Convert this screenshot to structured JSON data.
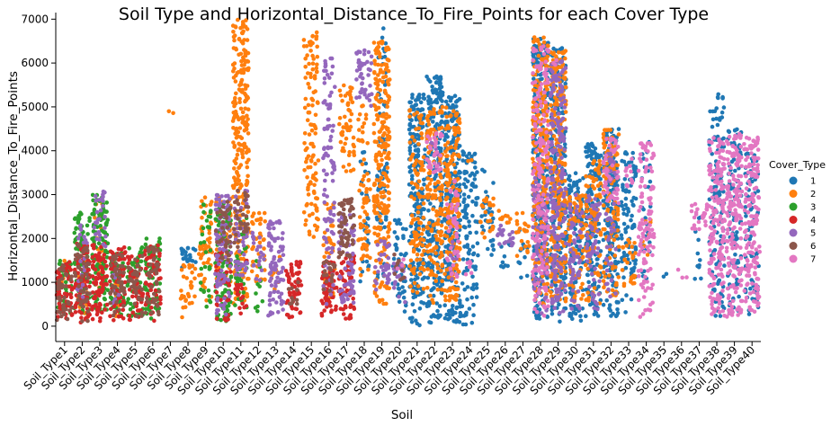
{
  "chart_data": {
    "type": "scatter",
    "subtype": "swarm",
    "title": "Soil Type and Horizontal_Distance_To_Fire_Points for each Cover Type",
    "xlabel": "Soil",
    "ylabel": "Horizontal_Distance_To_Fire_Points",
    "ylim": [
      -350,
      7150
    ],
    "yticks": [
      0,
      1000,
      2000,
      3000,
      4000,
      5000,
      6000,
      7000
    ],
    "grid": false,
    "legend": {
      "title": "Cover_Type",
      "placement": "right"
    },
    "categories": [
      "Soil_Type1",
      "Soil_Type2",
      "Soil_Type3",
      "Soil_Type4",
      "Soil_Type5",
      "Soil_Type6",
      "Soil_Type7",
      "Soil_Type8",
      "Soil_Type9",
      "Soil_Type10",
      "Soil_Type11",
      "Soil_Type12",
      "Soil_Type13",
      "Soil_Type14",
      "Soil_Type15",
      "Soil_Type16",
      "Soil_Type17",
      "Soil_Type18",
      "Soil_Type19",
      "Soil_Type20",
      "Soil_Type21",
      "Soil_Type22",
      "Soil_Type23",
      "Soil_Type24",
      "Soil_Type25",
      "Soil_Type26",
      "Soil_Type27",
      "Soil_Type28",
      "Soil_Type29",
      "Soil_Type30",
      "Soil_Type31",
      "Soil_Type32",
      "Soil_Type33",
      "Soil_Type34",
      "Soil_Type35",
      "Soil_Type36",
      "Soil_Type37",
      "Soil_Type38",
      "Soil_Type39",
      "Soil_Type40"
    ],
    "series": [
      {
        "name": "1",
        "color": "#1f77b4",
        "ranges": {
          "Soil_Type8": [
            1300,
            1800,
            1
          ],
          "Soil_Type18": [
            1000,
            4000,
            0.25
          ],
          "Soil_Type19": [
            900,
            6800,
            0.3
          ],
          "Soil_Type20": [
            200,
            2600,
            0.5
          ],
          "Soil_Type21": [
            0,
            5300,
            1
          ],
          "Soil_Type22": [
            0,
            5700,
            1
          ],
          "Soil_Type23": [
            0,
            5300,
            1
          ],
          "Soil_Type24": [
            0,
            4000,
            0.7
          ],
          "Soil_Type25": [
            1600,
            3600,
            0.4
          ],
          "Soil_Type26": [
            1300,
            2000,
            0.3
          ],
          "Soil_Type27": [
            1100,
            2200,
            0.25
          ],
          "Soil_Type28": [
            100,
            6600,
            1
          ],
          "Soil_Type29": [
            100,
            6400,
            1
          ],
          "Soil_Type30": [
            100,
            3500,
            0.9
          ],
          "Soil_Type31": [
            100,
            4200,
            1
          ],
          "Soil_Type32": [
            200,
            4500,
            1
          ],
          "Soil_Type33": [
            300,
            4000,
            0.6
          ],
          "Soil_Type34": [
            800,
            4200,
            0.2
          ],
          "Soil_Type35": [
            1000,
            1200,
            0.2
          ],
          "Soil_Type37": [
            1000,
            2500,
            0.2
          ],
          "Soil_Type38": [
            200,
            5300,
            0.6
          ],
          "Soil_Type39": [
            200,
            4500,
            0.5
          ],
          "Soil_Type40": [
            200,
            4000,
            0.5
          ]
        }
      },
      {
        "name": "2",
        "color": "#ff7f0e",
        "ranges": {
          "Soil_Type1": [
            800,
            1500,
            0.2
          ],
          "Soil_Type2": [
            200,
            1600,
            0.35
          ],
          "Soil_Type3": [
            800,
            2800,
            0.3
          ],
          "Soil_Type4": [
            200,
            1800,
            0.2
          ],
          "Soil_Type5": [
            300,
            1500,
            0.15
          ],
          "Soil_Type7": [
            4850,
            4900,
            0.1
          ],
          "Soil_Type8": [
            200,
            1400,
            0.6
          ],
          "Soil_Type9": [
            500,
            3000,
            0.5
          ],
          "Soil_Type10": [
            1000,
            3000,
            0.6
          ],
          "Soil_Type11": [
            500,
            7000,
            1
          ],
          "Soil_Type12": [
            1000,
            2600,
            0.6
          ],
          "Soil_Type13": [
            800,
            1600,
            0.25
          ],
          "Soil_Type15": [
            2000,
            6700,
            0.6
          ],
          "Soil_Type16": [
            500,
            2800,
            0.4
          ],
          "Soil_Type17": [
            3500,
            5500,
            0.7
          ],
          "Soil_Type18": [
            1000,
            5100,
            0.4
          ],
          "Soil_Type19": [
            500,
            6500,
            1
          ],
          "Soil_Type20": [
            1000,
            1400,
            0.2
          ],
          "Soil_Type21": [
            700,
            5000,
            0.6
          ],
          "Soil_Type22": [
            500,
            5000,
            0.8
          ],
          "Soil_Type23": [
            500,
            5000,
            0.9
          ],
          "Soil_Type24": [
            3700,
            3800,
            0.1
          ],
          "Soil_Type25": [
            2000,
            3000,
            0.6
          ],
          "Soil_Type26": [
            2200,
            2700,
            0.5
          ],
          "Soil_Type27": [
            1600,
            2600,
            0.5
          ],
          "Soil_Type28": [
            500,
            6600,
            1
          ],
          "Soil_Type29": [
            500,
            6300,
            1
          ],
          "Soil_Type30": [
            500,
            3000,
            0.7
          ],
          "Soil_Type31": [
            500,
            3800,
            0.7
          ],
          "Soil_Type32": [
            700,
            4500,
            0.7
          ],
          "Soil_Type33": [
            800,
            2000,
            0.5
          ],
          "Soil_Type34": [
            1500,
            2500,
            0.2
          ]
        }
      },
      {
        "name": "3",
        "color": "#2ca02c",
        "ranges": {
          "Soil_Type1": [
            200,
            1500,
            0.6
          ],
          "Soil_Type2": [
            200,
            2600,
            0.8
          ],
          "Soil_Type3": [
            300,
            3000,
            1
          ],
          "Soil_Type4": [
            200,
            1700,
            0.7
          ],
          "Soil_Type5": [
            200,
            1800,
            0.7
          ],
          "Soil_Type6": [
            100,
            2000,
            1
          ],
          "Soil_Type9": [
            300,
            2800,
            0.3
          ],
          "Soil_Type10": [
            100,
            2800,
            1
          ],
          "Soil_Type11": [
            300,
            2500,
            0.4
          ],
          "Soil_Type12": [
            300,
            1500,
            0.2
          ]
        }
      },
      {
        "name": "4",
        "color": "#d62728",
        "ranges": {
          "Soil_Type1": [
            100,
            1500,
            1
          ],
          "Soil_Type2": [
            0,
            1900,
            1
          ],
          "Soil_Type3": [
            0,
            1900,
            1
          ],
          "Soil_Type4": [
            100,
            1800,
            1
          ],
          "Soil_Type5": [
            100,
            1600,
            0.8
          ],
          "Soil_Type6": [
            100,
            1900,
            0.7
          ],
          "Soil_Type10": [
            100,
            2000,
            0.6
          ],
          "Soil_Type11": [
            200,
            1500,
            0.4
          ],
          "Soil_Type14": [
            150,
            1500,
            1
          ],
          "Soil_Type16": [
            150,
            1500,
            1
          ],
          "Soil_Type17": [
            150,
            1600,
            1
          ]
        }
      },
      {
        "name": "5",
        "color": "#9467bd",
        "ranges": {
          "Soil_Type2": [
            500,
            2300,
            0.3
          ],
          "Soil_Type3": [
            1500,
            3100,
            0.4
          ],
          "Soil_Type4": [
            400,
            1200,
            0.3
          ],
          "Soil_Type10": [
            200,
            3000,
            0.8
          ],
          "Soil_Type11": [
            1000,
            3100,
            0.5
          ],
          "Soil_Type12": [
            1000,
            2200,
            0.4
          ],
          "Soil_Type13": [
            200,
            2400,
            1
          ],
          "Soil_Type16": [
            500,
            6200,
            0.4
          ],
          "Soil_Type17": [
            500,
            2600,
            0.8
          ],
          "Soil_Type18": [
            5000,
            6300,
            0.8
          ],
          "Soil_Type19": [
            800,
            2000,
            0.6
          ],
          "Soil_Type20": [
            500,
            1500,
            0.4
          ],
          "Soil_Type22": [
            3500,
            4500,
            0.2
          ],
          "Soil_Type23": [
            1000,
            2000,
            0.2
          ],
          "Soil_Type26": [
            1800,
            2300,
            1
          ],
          "Soil_Type28": [
            200,
            3500,
            0.6
          ],
          "Soil_Type29": [
            300,
            6100,
            0.8
          ],
          "Soil_Type30": [
            300,
            3000,
            0.5
          ],
          "Soil_Type31": [
            300,
            3000,
            0.5
          ],
          "Soil_Type32": [
            300,
            4000,
            0.3
          ]
        }
      },
      {
        "name": "6",
        "color": "#8c564b",
        "ranges": {
          "Soil_Type1": [
            100,
            1400,
            0.7
          ],
          "Soil_Type2": [
            100,
            1900,
            0.6
          ],
          "Soil_Type4": [
            100,
            1700,
            0.6
          ],
          "Soil_Type5": [
            200,
            1600,
            0.6
          ],
          "Soil_Type6": [
            200,
            1800,
            0.6
          ],
          "Soil_Type10": [
            1500,
            2900,
            0.6
          ],
          "Soil_Type11": [
            1800,
            3100,
            0.6
          ],
          "Soil_Type14": [
            300,
            1100,
            0.3
          ],
          "Soil_Type16": [
            500,
            1500,
            0.4
          ],
          "Soil_Type17": [
            1500,
            2900,
            1
          ],
          "Soil_Type20": [
            1000,
            1800,
            0.3
          ]
        }
      },
      {
        "name": "7",
        "color": "#e377c2",
        "ranges": {
          "Soil_Type20": [
            1200,
            1600,
            0.2
          ],
          "Soil_Type22": [
            3500,
            4400,
            0.8
          ],
          "Soil_Type23": [
            1000,
            3600,
            0.4
          ],
          "Soil_Type24": [
            1000,
            1500,
            0.3
          ],
          "Soil_Type28": [
            200,
            6400,
            0.7
          ],
          "Soil_Type29": [
            5900,
            6100,
            0.4
          ],
          "Soil_Type32": [
            2800,
            4300,
            0.7
          ],
          "Soil_Type33": [
            3000,
            3900,
            0.3
          ],
          "Soil_Type34": [
            200,
            4200,
            0.7
          ],
          "Soil_Type36": [
            1100,
            1300,
            0.4
          ],
          "Soil_Type37": [
            2200,
            2800,
            1
          ],
          "Soil_Type38": [
            200,
            4300,
            1
          ],
          "Soil_Type39": [
            200,
            4400,
            1
          ],
          "Soil_Type40": [
            300,
            4300,
            1
          ]
        }
      }
    ]
  }
}
